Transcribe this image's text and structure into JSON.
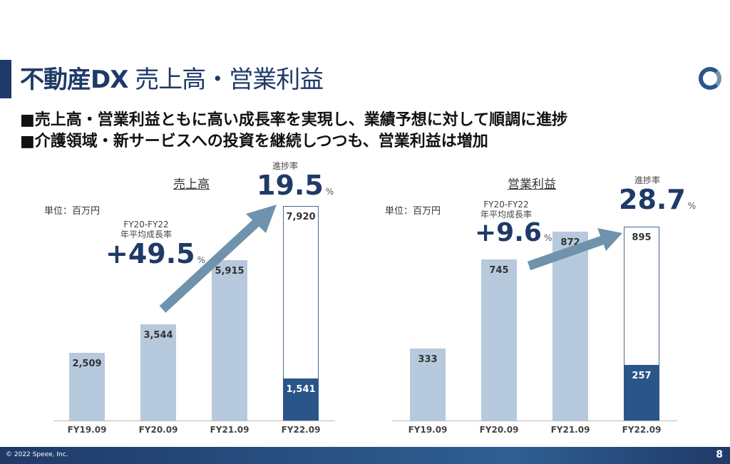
{
  "title": {
    "bold": "不動産DX",
    "rest": "売上高・営業利益"
  },
  "bullets": [
    "■売上高・営業利益ともに高い成長率を実現し、業績予想に対して順調に進捗",
    "■介護領域・新サービスへの投資を継続しつつも、営業利益は増加"
  ],
  "colors": {
    "navy": "#1f3a68",
    "light_bar": "#b7c9dc",
    "dark_bar": "#2a5589",
    "arrow": "#6f93ac"
  },
  "charts": [
    {
      "title": "売上高",
      "unit": "単位：百万円",
      "cagr_label1": "FY20-FY22",
      "cagr_label2": "年平均成長率",
      "cagr": "+49.5",
      "pct": "%",
      "progress_label": "進捗率",
      "progress": "19.5",
      "categories": [
        "FY19.09",
        "FY20.09",
        "FY21.09",
        "FY22.09"
      ],
      "values": [
        2509,
        3544,
        5915,
        7920
      ],
      "labels": [
        "2,509",
        "3,544",
        "5,915",
        "7,920"
      ],
      "actual": 1541,
      "actual_label": "1,541"
    },
    {
      "title": "営業利益",
      "unit": "単位：百万円",
      "cagr_label1": "FY20-FY22",
      "cagr_label2": "年平均成長率",
      "cagr": "+9.6",
      "pct": "%",
      "progress_label": "進捗率",
      "progress": "28.7",
      "categories": [
        "FY19.09",
        "FY20.09",
        "FY21.09",
        "FY22.09"
      ],
      "values": [
        333,
        745,
        872,
        895
      ],
      "labels": [
        "333",
        "745",
        "872",
        "895"
      ],
      "actual": 257,
      "actual_label": "257"
    }
  ],
  "footer": {
    "copyright": "© 2022 Speee, Inc.",
    "page": "8"
  }
}
